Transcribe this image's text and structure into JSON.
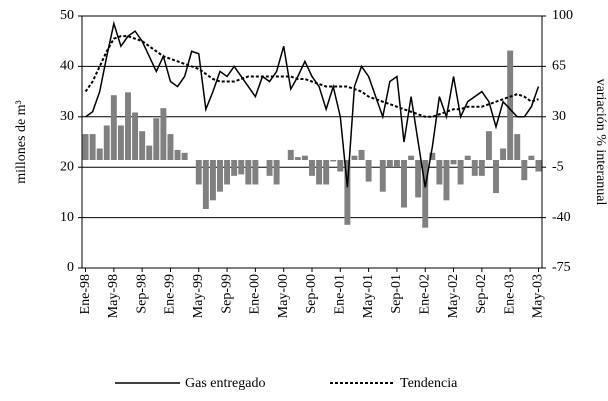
{
  "chart_data": {
    "type": "combo",
    "y_label": "millones de m³",
    "y2_label": "variación % interanual",
    "categories": [
      "Ene-98",
      null,
      null,
      null,
      "May-98",
      null,
      null,
      null,
      "Sep-98",
      null,
      null,
      null,
      "Ene-99",
      null,
      null,
      null,
      "May-99",
      null,
      null,
      null,
      "Sep-99",
      null,
      null,
      null,
      "Ene-00",
      null,
      null,
      null,
      "May-00",
      null,
      null,
      null,
      "Sep-00",
      null,
      null,
      null,
      "Ene-01",
      null,
      null,
      null,
      "May-01",
      null,
      null,
      null,
      "Sep-01",
      null,
      null,
      null,
      "Ene-02",
      null,
      null,
      null,
      "May-02",
      null,
      null,
      null,
      "Sep-02",
      null,
      null,
      null,
      "Ene-03",
      null,
      null,
      null,
      "May-03"
    ],
    "series": [
      {
        "name": "Gas entregado",
        "type": "line",
        "line_style": "solid",
        "color": "#000000",
        "values": [
          30,
          31,
          35,
          42,
          48.5,
          44,
          46,
          47,
          45,
          42,
          39,
          42,
          37,
          36,
          38,
          43,
          42.5,
          31.5,
          35,
          39,
          38,
          40,
          38,
          36,
          34,
          38,
          37,
          39,
          44,
          35.5,
          38,
          41,
          38,
          36,
          31.5,
          36,
          30,
          16,
          36,
          40,
          38,
          34,
          30,
          37,
          38,
          25,
          34,
          25,
          16,
          24,
          34,
          30,
          38,
          30,
          33,
          34,
          35,
          33,
          28,
          33,
          31.5,
          30,
          30,
          32,
          36
        ]
      },
      {
        "name": "Tendencia",
        "type": "line",
        "line_style": "dashed",
        "color": "#000000",
        "values": [
          35,
          37,
          40,
          43,
          45.5,
          46,
          46,
          45.5,
          45,
          44,
          43,
          42,
          41.5,
          41,
          40.5,
          40,
          39.5,
          38.5,
          37.5,
          37,
          37,
          37,
          37.5,
          38,
          38,
          38,
          38,
          38,
          38,
          38,
          37.5,
          37.5,
          37,
          36.5,
          36,
          36,
          36,
          36,
          35.5,
          35,
          34,
          33.5,
          33,
          32.5,
          32,
          31.5,
          31,
          30.5,
          30,
          30,
          30.5,
          31,
          31.5,
          31.5,
          32,
          32,
          32,
          32.5,
          33,
          33.5,
          34,
          34.5,
          34,
          33,
          33.5
        ]
      },
      {
        "type": "bar",
        "axis": "y2",
        "color": "#808080",
        "values": [
          18,
          18,
          8,
          24,
          45,
          24,
          47,
          33,
          20,
          10,
          29,
          36,
          18,
          7,
          5,
          0,
          -17,
          -34,
          -28,
          -22,
          -17,
          -11,
          -10,
          -17,
          -17,
          0,
          -11,
          -17,
          0,
          7,
          2,
          3,
          -11,
          -17,
          -17,
          -1,
          -8,
          -45,
          3,
          7,
          -15,
          0,
          -22,
          -5,
          -5,
          -33,
          3,
          -26,
          -47,
          5,
          -17,
          -28,
          -3,
          -17,
          3,
          -11,
          -11,
          20,
          -23,
          8,
          76,
          18,
          -14,
          3,
          -8
        ]
      }
    ],
    "ylim": [
      0,
      50
    ],
    "yticks": [
      0,
      10,
      20,
      30,
      40,
      50
    ],
    "y2lim": [
      -75,
      100
    ],
    "y2ticks": [
      -75,
      -40,
      -5,
      30,
      65,
      100
    ],
    "grid": true,
    "legend": "bottom"
  }
}
